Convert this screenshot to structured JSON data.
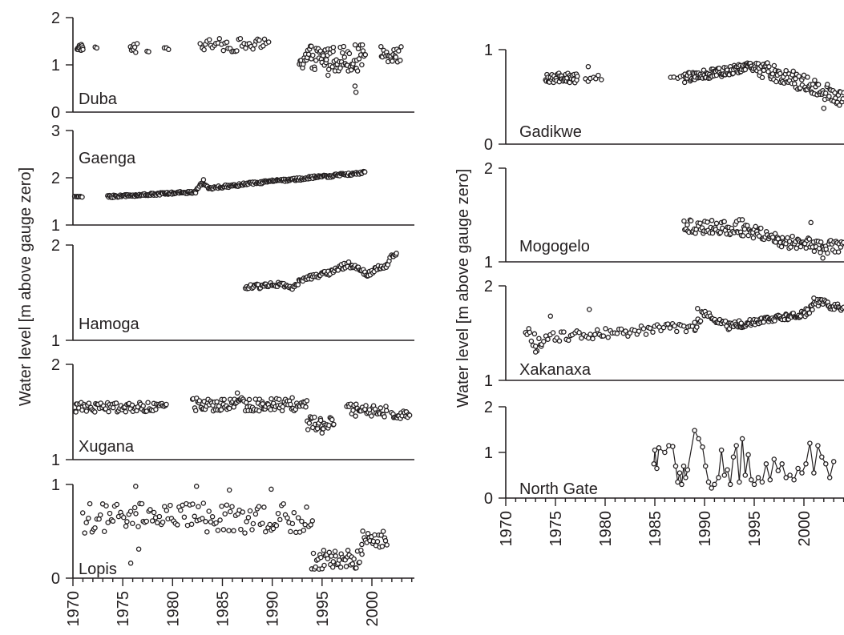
{
  "figure": {
    "left_column_ylabel": "Water level [m above gauge zero]",
    "right_column_ylabel": "Water level [m above gauge zero]"
  },
  "chart_data": [
    {
      "id": "duba",
      "type": "scatter",
      "column": "left",
      "label": "Duba",
      "ylim": [
        0,
        2
      ],
      "yticks": [
        0,
        1,
        2
      ],
      "ytick_labels": [
        "0",
        "1",
        "2"
      ],
      "xlim": [
        1970,
        2004
      ],
      "connected": false,
      "segments": [
        {
          "from": 1970.4,
          "to": 1971.0,
          "base": 1.37,
          "amp": 0.07,
          "n": 14
        },
        {
          "from": 1972.2,
          "to": 1972.4,
          "base": 1.36,
          "amp": 0.02,
          "n": 2
        },
        {
          "from": 1975.8,
          "to": 1976.4,
          "base": 1.35,
          "amp": 0.1,
          "n": 8
        },
        {
          "from": 1977.4,
          "to": 1977.6,
          "base": 1.29,
          "amp": 0.02,
          "n": 2
        },
        {
          "from": 1979.2,
          "to": 1979.6,
          "base": 1.34,
          "amp": 0.02,
          "n": 3
        },
        {
          "from": 1982.8,
          "to": 1989.6,
          "base": 1.42,
          "amp": 0.14,
          "n": 40
        },
        {
          "from": 1992.7,
          "to": 1999.3,
          "base": 1.15,
          "amp": 0.28,
          "n": 85
        },
        {
          "from": 2000.9,
          "to": 2002.9,
          "base": 1.23,
          "amp": 0.17,
          "n": 22
        }
      ],
      "points": [
        [
          1998.4,
          0.42
        ],
        [
          1998.3,
          0.55
        ],
        [
          1995.6,
          0.78
        ]
      ]
    },
    {
      "id": "gaenga",
      "type": "scatter",
      "column": "left",
      "label": "Gaenga",
      "ylim": [
        1,
        3
      ],
      "yticks": [
        1,
        2,
        3
      ],
      "ytick_labels": [
        "1",
        "2",
        "3"
      ],
      "xlim": [
        1970,
        2004
      ],
      "connected": false,
      "segments": [
        {
          "from": 1970.2,
          "to": 1970.9,
          "base": 1.53,
          "amp": 0.01,
          "n": 8
        },
        {
          "from": 1973.5,
          "to": 1982.4,
          "base": 1.6,
          "amp": 0.025,
          "n": 110
        },
        {
          "from": 1982.4,
          "to": 1999.3,
          "base": 1.75,
          "amp": 0.03,
          "n": 190
        }
      ],
      "trend": [
        [
          1973.5,
          1.6
        ],
        [
          1982.3,
          1.7
        ],
        [
          1983.0,
          1.9
        ],
        [
          1983.6,
          1.77
        ],
        [
          1987.0,
          1.86
        ],
        [
          1999.3,
          2.11
        ]
      ],
      "points": [
        [
          1983.1,
          1.96
        ]
      ]
    },
    {
      "id": "hamoga",
      "type": "scatter",
      "column": "left",
      "label": "Hamoga",
      "ylim": [
        1,
        2
      ],
      "yticks": [
        1,
        2
      ],
      "ytick_labels": [
        "1",
        "2"
      ],
      "xlim": [
        1970,
        2004
      ],
      "connected": false,
      "segments": [
        {
          "from": 1987.3,
          "to": 2002.5,
          "base": 1.55,
          "amp": 0.03,
          "n": 140
        }
      ],
      "trend": [
        [
          1987.3,
          1.55
        ],
        [
          1990.0,
          1.59
        ],
        [
          1991.2,
          1.57
        ],
        [
          1992.0,
          1.56
        ],
        [
          1993.5,
          1.66
        ],
        [
          1996.0,
          1.72
        ],
        [
          1997.6,
          1.8
        ],
        [
          1998.5,
          1.76
        ],
        [
          1999.6,
          1.68
        ],
        [
          2000.4,
          1.75
        ],
        [
          2001.4,
          1.77
        ],
        [
          2002.1,
          1.9
        ],
        [
          2002.6,
          1.9
        ]
      ],
      "points": []
    },
    {
      "id": "xugana",
      "type": "scatter",
      "column": "left",
      "label": "Xugana",
      "ylim": [
        1,
        2
      ],
      "yticks": [
        1,
        2
      ],
      "ytick_labels": [
        "1",
        "2"
      ],
      "xlim": [
        1970,
        2004
      ],
      "connected": false,
      "segments": [
        {
          "from": 1970.2,
          "to": 1979.4,
          "base": 1.55,
          "amp": 0.05,
          "n": 75
        },
        {
          "from": 1982.0,
          "to": 1993.5,
          "base": 1.58,
          "amp": 0.07,
          "n": 110
        },
        {
          "from": 1993.5,
          "to": 1996.2,
          "base": 1.38,
          "amp": 0.07,
          "n": 28
        },
        {
          "from": 1997.5,
          "to": 2001.5,
          "base": 1.52,
          "amp": 0.07,
          "n": 35
        },
        {
          "from": 2002.0,
          "to": 2003.8,
          "base": 1.46,
          "amp": 0.05,
          "n": 18
        }
      ],
      "points": [
        [
          1970.3,
          1.5
        ],
        [
          1986.5,
          1.7
        ],
        [
          1995.0,
          1.28
        ]
      ]
    },
    {
      "id": "lopis",
      "type": "scatter",
      "column": "left",
      "label": "Lopis",
      "ylim": [
        0,
        1
      ],
      "yticks": [
        0,
        1
      ],
      "ytick_labels": [
        "0",
        "1"
      ],
      "xlim": [
        1970,
        2004
      ],
      "connected": false,
      "segments": [
        {
          "from": 1971.0,
          "to": 1994.0,
          "base": 0.64,
          "amp": 0.16,
          "n": 130
        },
        {
          "from": 1994.0,
          "to": 1999.0,
          "base": 0.2,
          "amp": 0.11,
          "n": 45
        },
        {
          "from": 1999.0,
          "to": 2001.5,
          "base": 0.42,
          "amp": 0.09,
          "n": 22
        }
      ],
      "points": [
        [
          1975.8,
          0.16
        ],
        [
          1976.3,
          0.98
        ],
        [
          1982.4,
          0.98
        ],
        [
          1989.9,
          0.95
        ],
        [
          1976.6,
          0.31
        ],
        [
          1985.7,
          0.94
        ]
      ]
    },
    {
      "id": "gadikwe",
      "type": "scatter",
      "column": "right",
      "label": "Gadikwe",
      "ylim": [
        0,
        1
      ],
      "yticks": [
        0,
        1
      ],
      "ytick_labels": [
        "0",
        "1"
      ],
      "xlim": [
        1970,
        2004
      ],
      "connected": false,
      "segments": [
        {
          "from": 1974.0,
          "to": 1977.2,
          "base": 0.71,
          "amp": 0.05,
          "n": 45
        },
        {
          "from": 1978.0,
          "to": 1979.6,
          "base": 0.74,
          "amp": 0.04,
          "n": 7
        },
        {
          "from": 1986.6,
          "to": 1987.6,
          "base": 0.76,
          "amp": 0.02,
          "n": 4
        },
        {
          "from": 1987.9,
          "to": 1995.5,
          "base": 0.76,
          "amp": 0.05,
          "n": 110
        },
        {
          "from": 1995.5,
          "to": 2004.0,
          "base": 0.6,
          "amp": 0.09,
          "n": 95
        }
      ],
      "trend": [
        [
          1987.9,
          0.7
        ],
        [
          1995.0,
          0.82
        ],
        [
          1998.0,
          0.72
        ],
        [
          2004.0,
          0.48
        ]
      ],
      "points": [
        [
          2002.0,
          0.38
        ],
        [
          1978.3,
          0.82
        ]
      ]
    },
    {
      "id": "mogogelo",
      "type": "scatter",
      "column": "right",
      "label": "Mogogelo",
      "ylim": [
        1,
        2
      ],
      "yticks": [
        1,
        2
      ],
      "ytick_labels": [
        "1",
        "2"
      ],
      "xlim": [
        1970,
        2004
      ],
      "connected": false,
      "segments": [
        {
          "from": 1987.9,
          "to": 2004.0,
          "base": 1.3,
          "amp": 0.08,
          "n": 150
        }
      ],
      "trend": [
        [
          1987.9,
          1.37
        ],
        [
          1993.5,
          1.37
        ],
        [
          1997.0,
          1.24
        ],
        [
          2004.0,
          1.13
        ]
      ],
      "points": [
        [
          2001.9,
          1.04
        ],
        [
          2000.7,
          1.42
        ],
        [
          1993.8,
          1.45
        ]
      ]
    },
    {
      "id": "xakanaxa",
      "type": "scatter",
      "column": "right",
      "label": "Xakanaxa",
      "ylim": [
        1,
        2
      ],
      "yticks": [
        1,
        2
      ],
      "ytick_labels": [
        "1",
        "2"
      ],
      "xlim": [
        1970,
        2004
      ],
      "connected": false,
      "segments": [
        {
          "from": 1972.0,
          "to": 1973.6,
          "base": 1.4,
          "amp": 0.1,
          "n": 12
        },
        {
          "from": 1973.6,
          "to": 1989.0,
          "base": 1.5,
          "amp": 0.05,
          "n": 70
        },
        {
          "from": 1989.0,
          "to": 1992.5,
          "base": 1.62,
          "amp": 0.05,
          "n": 30
        },
        {
          "from": 1992.5,
          "to": 2004.0,
          "base": 1.67,
          "amp": 0.04,
          "n": 135
        }
      ],
      "trend": [
        [
          1972.0,
          1.5
        ],
        [
          1973.0,
          1.4
        ],
        [
          1974.0,
          1.45
        ],
        [
          1989.0,
          1.57
        ],
        [
          1990.0,
          1.72
        ],
        [
          1992.5,
          1.58
        ],
        [
          2000.0,
          1.7
        ],
        [
          2001.5,
          1.83
        ],
        [
          2004.0,
          1.76
        ]
      ],
      "points": [
        [
          1973.0,
          1.3
        ],
        [
          1974.5,
          1.68
        ],
        [
          1978.4,
          1.75
        ],
        [
          1989.3,
          1.76
        ],
        [
          2001.0,
          1.87
        ]
      ]
    },
    {
      "id": "north-gate",
      "type": "line",
      "column": "right",
      "label": "North Gate",
      "ylim": [
        0,
        2
      ],
      "yticks": [
        0,
        1,
        2
      ],
      "ytick_labels": [
        "0",
        "1",
        "2"
      ],
      "xlim": [
        1970,
        2004
      ],
      "connected": true,
      "series": [
        {
          "x": 1984.9,
          "y": 0.75
        },
        {
          "x": 1985.0,
          "y": 1.05
        },
        {
          "x": 1985.2,
          "y": 0.65
        },
        {
          "x": 1985.4,
          "y": 1.1
        },
        {
          "x": 1986.0,
          "y": 1.0
        },
        {
          "x": 1986.4,
          "y": 1.15
        },
        {
          "x": 1986.8,
          "y": 1.13
        },
        {
          "x": 1987.1,
          "y": 0.7
        },
        {
          "x": 1987.3,
          "y": 0.35
        },
        {
          "x": 1987.5,
          "y": 0.55
        },
        {
          "x": 1987.7,
          "y": 0.3
        },
        {
          "x": 1987.9,
          "y": 0.7
        },
        {
          "x": 1988.1,
          "y": 0.45
        },
        {
          "x": 1988.3,
          "y": 0.62
        },
        {
          "x": 1989.0,
          "y": 1.48
        },
        {
          "x": 1989.4,
          "y": 1.3
        },
        {
          "x": 1989.8,
          "y": 1.12
        },
        {
          "x": 1990.1,
          "y": 0.7
        },
        {
          "x": 1990.4,
          "y": 0.35
        },
        {
          "x": 1990.7,
          "y": 0.22
        },
        {
          "x": 1991.0,
          "y": 0.3
        },
        {
          "x": 1991.4,
          "y": 0.45
        },
        {
          "x": 1991.7,
          "y": 1.05
        },
        {
          "x": 1992.0,
          "y": 0.5
        },
        {
          "x": 1992.3,
          "y": 0.62
        },
        {
          "x": 1992.6,
          "y": 0.3
        },
        {
          "x": 1992.9,
          "y": 0.9
        },
        {
          "x": 1993.2,
          "y": 1.15
        },
        {
          "x": 1993.5,
          "y": 0.35
        },
        {
          "x": 1993.8,
          "y": 1.3
        },
        {
          "x": 1994.1,
          "y": 0.5
        },
        {
          "x": 1994.4,
          "y": 0.95
        },
        {
          "x": 1994.7,
          "y": 0.4
        },
        {
          "x": 1995.0,
          "y": 0.3
        },
        {
          "x": 1995.4,
          "y": 0.45
        },
        {
          "x": 1995.8,
          "y": 0.35
        },
        {
          "x": 1996.2,
          "y": 0.75
        },
        {
          "x": 1996.6,
          "y": 0.4
        },
        {
          "x": 1997.0,
          "y": 0.85
        },
        {
          "x": 1997.4,
          "y": 0.6
        },
        {
          "x": 1997.8,
          "y": 0.75
        },
        {
          "x": 1998.2,
          "y": 0.45
        },
        {
          "x": 1998.6,
          "y": 0.5
        },
        {
          "x": 1999.0,
          "y": 0.4
        },
        {
          "x": 1999.4,
          "y": 0.65
        },
        {
          "x": 1999.8,
          "y": 0.55
        },
        {
          "x": 2000.2,
          "y": 0.75
        },
        {
          "x": 2000.6,
          "y": 1.2
        },
        {
          "x": 2001.0,
          "y": 0.55
        },
        {
          "x": 2001.4,
          "y": 1.15
        },
        {
          "x": 2001.8,
          "y": 0.9
        },
        {
          "x": 2002.2,
          "y": 0.75
        },
        {
          "x": 2002.6,
          "y": 0.45
        },
        {
          "x": 2003.0,
          "y": 0.8
        }
      ]
    }
  ],
  "x_axis": {
    "ticks": [
      1970,
      1975,
      1980,
      1985,
      1990,
      1995,
      2000
    ],
    "tick_labels": [
      "1970",
      "1975",
      "1980",
      "1985",
      "1990",
      "1995",
      "2000"
    ]
  }
}
